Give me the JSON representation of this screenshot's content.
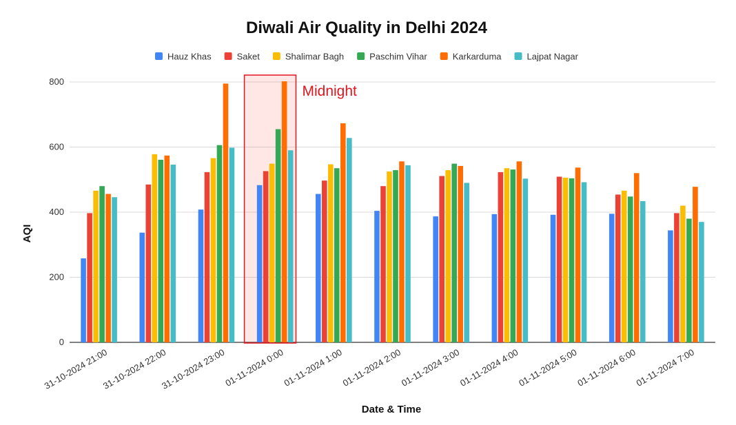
{
  "chart_data": {
    "type": "bar",
    "title": "Diwali Air Quality in Delhi 2024",
    "xlabel": "Date & Time",
    "ylabel": "AQI",
    "ylim": [
      0,
      800
    ],
    "yticks": [
      0,
      200,
      400,
      600,
      800
    ],
    "grid": true,
    "legend_position": "top",
    "categories": [
      "31-10-2024 21:00",
      "31-10-2024 22:00",
      "31-10-2024 23:00",
      "01-11-2024 0:00",
      "01-11-2024 1:00",
      "01-11-2024 2:00",
      "01-11-2024 3:00",
      "01-11-2024 4:00",
      "01-11-2024 5:00",
      "01-11-2024 6:00",
      "01-11-2024 7:00"
    ],
    "series": [
      {
        "name": "Hauz Khas",
        "color": "#4285f4",
        "values": [
          258,
          337,
          408,
          483,
          456,
          404,
          387,
          394,
          392,
          395,
          344
        ]
      },
      {
        "name": "Saket",
        "color": "#ea4335",
        "values": [
          397,
          485,
          523,
          526,
          497,
          480,
          511,
          523,
          509,
          454,
          397
        ]
      },
      {
        "name": "Shalimar Bagh",
        "color": "#fbbc04",
        "values": [
          466,
          578,
          566,
          549,
          547,
          525,
          529,
          535,
          506,
          466,
          420
        ]
      },
      {
        "name": "Paschim Vihar",
        "color": "#34a853",
        "values": [
          480,
          561,
          606,
          655,
          535,
          529,
          549,
          531,
          504,
          448,
          380
        ]
      },
      {
        "name": "Karkarduma",
        "color": "#ff6d01",
        "values": [
          456,
          574,
          795,
          802,
          673,
          556,
          542,
          556,
          537,
          520,
          478
        ]
      },
      {
        "name": "Lajpat Nagar",
        "color": "#46bdc6",
        "values": [
          446,
          546,
          598,
          590,
          628,
          544,
          490,
          503,
          492,
          434,
          370
        ]
      }
    ],
    "annotations": [
      {
        "text": "Midnight",
        "category": "01-11-2024 0:00",
        "color": "#e0161f"
      }
    ]
  }
}
